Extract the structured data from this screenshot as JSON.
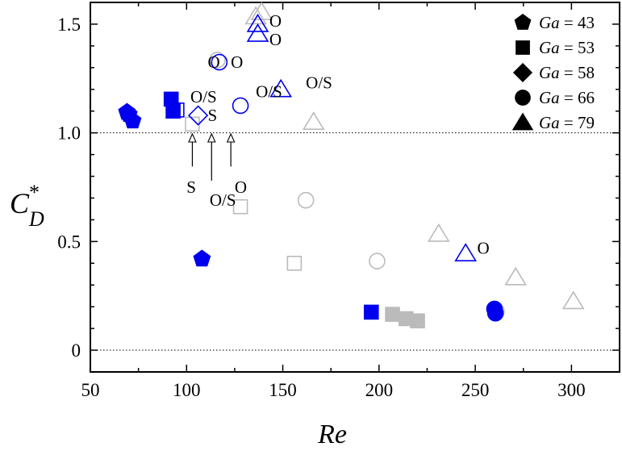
{
  "chart_data": {
    "type": "scatter",
    "xlabel": "Re",
    "ylabel": {
      "main": "C",
      "sup": "*",
      "sub": "D"
    },
    "xlim": [
      50,
      325
    ],
    "ylim": [
      -0.1,
      1.6
    ],
    "xticks": [
      {
        "value": 50,
        "label": "50"
      },
      {
        "value": 100,
        "label": "100"
      },
      {
        "value": 150,
        "label": "150"
      },
      {
        "value": 200,
        "label": "200"
      },
      {
        "value": 250,
        "label": "250"
      },
      {
        "value": 300,
        "label": "300"
      }
    ],
    "yticks": [
      {
        "value": 0,
        "label": "0"
      },
      {
        "value": 0.5,
        "label": "0.5"
      },
      {
        "value": 1.0,
        "label": "1.0"
      },
      {
        "value": 1.5,
        "label": "1.5"
      }
    ],
    "reference_lines": [
      1.0,
      0.0
    ],
    "colors": {
      "blue": "#0000ee",
      "gray": "#bbbbbb",
      "black": "#000000"
    },
    "legend": {
      "position": "top-right",
      "entries": [
        {
          "marker": "pentagon",
          "var": "Ga",
          "text": " = 43"
        },
        {
          "marker": "square",
          "var": "Ga",
          "text": " = 53"
        },
        {
          "marker": "diamond",
          "var": "Ga",
          "text": " = 58"
        },
        {
          "marker": "circle",
          "var": "Ga",
          "text": " = 66"
        },
        {
          "marker": "triangle",
          "var": "Ga",
          "text": " = 79"
        }
      ]
    },
    "points": [
      {
        "marker": "pentagon",
        "x": 69,
        "y": 1.095,
        "color": "blue",
        "filled": true
      },
      {
        "marker": "pentagon",
        "x": 70,
        "y": 1.085,
        "color": "blue",
        "filled": true
      },
      {
        "marker": "pentagon",
        "x": 72,
        "y": 1.055,
        "color": "blue",
        "filled": true
      },
      {
        "marker": "pentagon",
        "x": 108,
        "y": 0.42,
        "color": "blue",
        "filled": true
      },
      {
        "marker": "square",
        "x": 92,
        "y": 1.155,
        "color": "blue",
        "filled": true
      },
      {
        "marker": "square",
        "x": 93,
        "y": 1.1,
        "color": "blue",
        "filled": true
      },
      {
        "marker": "square",
        "x": 95,
        "y": 1.105,
        "color": "blue",
        "filled": false
      },
      {
        "marker": "square",
        "x": 103,
        "y": 1.04,
        "color": "gray",
        "filled": false
      },
      {
        "marker": "square",
        "x": 128,
        "y": 0.66,
        "color": "gray",
        "filled": false
      },
      {
        "marker": "square",
        "x": 156,
        "y": 0.4,
        "color": "gray",
        "filled": false
      },
      {
        "marker": "square",
        "x": 196,
        "y": 0.175,
        "color": "blue",
        "filled": true
      },
      {
        "marker": "square",
        "x": 207,
        "y": 0.165,
        "color": "gray",
        "filled": true
      },
      {
        "marker": "square",
        "x": 214,
        "y": 0.145,
        "color": "gray",
        "filled": true
      },
      {
        "marker": "square",
        "x": 220,
        "y": 0.135,
        "color": "gray",
        "filled": true
      },
      {
        "marker": "diamond",
        "x": 106,
        "y": 1.08,
        "color": "blue",
        "filled": false
      },
      {
        "marker": "circle",
        "x": 116,
        "y": 1.335,
        "color": "gray",
        "filled": false
      },
      {
        "marker": "circle",
        "x": 117,
        "y": 1.325,
        "color": "blue",
        "filled": false
      },
      {
        "marker": "circle",
        "x": 128,
        "y": 1.125,
        "color": "blue",
        "filled": false
      },
      {
        "marker": "circle",
        "x": 162,
        "y": 0.69,
        "color": "gray",
        "filled": false
      },
      {
        "marker": "circle",
        "x": 199,
        "y": 0.41,
        "color": "gray",
        "filled": false
      },
      {
        "marker": "circle",
        "x": 261,
        "y": 0.18,
        "color": "gray",
        "filled": false
      },
      {
        "marker": "circle",
        "x": 260,
        "y": 0.19,
        "color": "blue",
        "filled": true
      },
      {
        "marker": "circle",
        "x": 260.5,
        "y": 0.17,
        "color": "blue",
        "filled": true
      },
      {
        "marker": "triangle",
        "x": 136,
        "y": 1.535,
        "color": "gray",
        "filled": false
      },
      {
        "marker": "triangle",
        "x": 139,
        "y": 1.555,
        "color": "gray",
        "filled": false
      },
      {
        "marker": "triangle",
        "x": 137,
        "y": 1.5,
        "color": "blue",
        "filled": false
      },
      {
        "marker": "triangle",
        "x": 137,
        "y": 1.455,
        "color": "blue",
        "filled": false
      },
      {
        "marker": "triangle",
        "x": 149,
        "y": 1.2,
        "color": "blue",
        "filled": false
      },
      {
        "marker": "triangle",
        "x": 166,
        "y": 1.05,
        "color": "gray",
        "filled": false
      },
      {
        "marker": "triangle",
        "x": 231,
        "y": 0.535,
        "color": "gray",
        "filled": false
      },
      {
        "marker": "triangle",
        "x": 245,
        "y": 0.445,
        "color": "blue",
        "filled": false
      },
      {
        "marker": "triangle",
        "x": 271,
        "y": 0.335,
        "color": "gray",
        "filled": false
      },
      {
        "marker": "triangle",
        "x": 301,
        "y": 0.225,
        "color": "gray",
        "filled": false
      }
    ],
    "annotations": [
      {
        "text": "O",
        "x": 143,
        "y": 1.515
      },
      {
        "text": "O",
        "x": 143,
        "y": 1.43
      },
      {
        "text": "O",
        "x": 111,
        "y": 1.325
      },
      {
        "text": "O",
        "x": 123,
        "y": 1.325
      },
      {
        "text": "O/S",
        "x": 102,
        "y": 1.165
      },
      {
        "text": "O/S",
        "x": 136,
        "y": 1.19
      },
      {
        "text": "O/S",
        "x": 162,
        "y": 1.23
      },
      {
        "text": "S",
        "x": 111,
        "y": 1.08
      },
      {
        "text": "O",
        "x": 251,
        "y": 0.47
      },
      {
        "text": "S",
        "x": 100,
        "y": 0.75
      },
      {
        "text": "O/S",
        "x": 112,
        "y": 0.69
      },
      {
        "text": "O",
        "x": 125,
        "y": 0.75
      }
    ],
    "arrows": [
      {
        "x": 103,
        "y_from": 0.845,
        "y_to": 0.995
      },
      {
        "x": 113,
        "y_from": 0.78,
        "y_to": 0.995
      },
      {
        "x": 123,
        "y_from": 0.845,
        "y_to": 0.995
      }
    ]
  }
}
